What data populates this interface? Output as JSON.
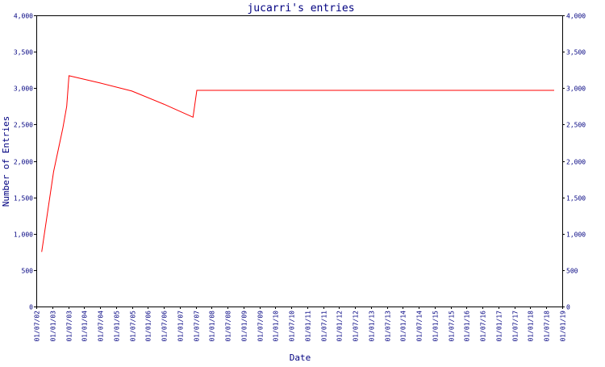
{
  "colors": {
    "background": "#ffffff",
    "frame": "#000000",
    "text": "#000080",
    "series_line": "#ff0000"
  },
  "chart_data": {
    "type": "line",
    "title": "jucarri's entries",
    "xlabel": "Date",
    "ylabel": "Number of Entries",
    "ylim": [
      0,
      4000
    ],
    "y_ticks": [
      0,
      500,
      1000,
      1500,
      2000,
      2500,
      3000,
      3500,
      4000
    ],
    "y_tick_labels": [
      "0",
      "500",
      "1,000",
      "1,500",
      "2,000",
      "2,500",
      "3,000",
      "3,500",
      "4,000"
    ],
    "y_axis_right": true,
    "grid": false,
    "legend": "none",
    "x_tick_labels": [
      "01/07/02",
      "01/01/03",
      "01/07/03",
      "01/01/04",
      "01/07/04",
      "01/01/05",
      "01/07/05",
      "01/01/06",
      "01/07/06",
      "01/01/07",
      "01/07/07",
      "01/01/08",
      "01/07/08",
      "01/01/09",
      "01/07/09",
      "01/01/10",
      "01/07/10",
      "01/01/11",
      "01/07/11",
      "01/01/12",
      "01/07/12",
      "01/01/13",
      "01/07/13",
      "01/01/14",
      "01/07/14",
      "01/01/15",
      "01/07/15",
      "01/01/16",
      "01/07/16",
      "01/01/17",
      "01/07/17",
      "01/01/18",
      "01/07/18",
      "01/01/19"
    ],
    "xlim": [
      "2002-07-01",
      "2019-01-01"
    ],
    "series": [
      {
        "points": [
          {
            "x": "2002-09-01",
            "y": 750
          },
          {
            "x": "2003-01-15",
            "y": 1850
          },
          {
            "x": "2003-05-01",
            "y": 2450
          },
          {
            "x": "2003-06-15",
            "y": 2750
          },
          {
            "x": "2003-07-10",
            "y": 3170
          },
          {
            "x": "2004-07-01",
            "y": 3070
          },
          {
            "x": "2005-07-01",
            "y": 2960
          },
          {
            "x": "2006-07-01",
            "y": 2780
          },
          {
            "x": "2007-06-01",
            "y": 2600
          },
          {
            "x": "2007-07-15",
            "y": 2970
          },
          {
            "x": "2018-10-01",
            "y": 2970
          }
        ]
      }
    ]
  }
}
